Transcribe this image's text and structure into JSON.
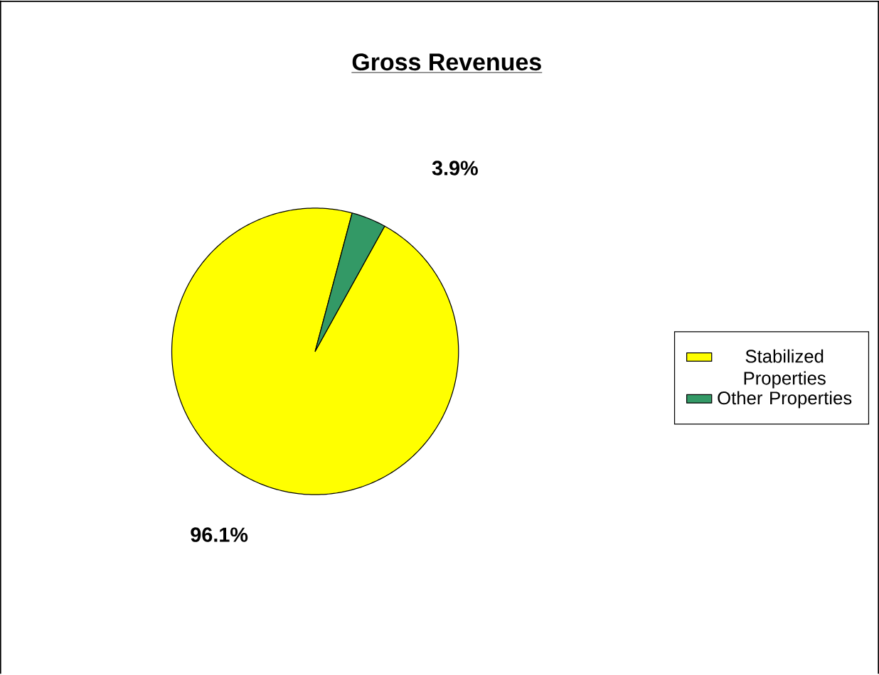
{
  "chart_data": {
    "type": "pie",
    "title": "Gross Revenues",
    "categories": [
      "Stabilized Properties",
      "Other Properties"
    ],
    "values": [
      96.1,
      3.9
    ],
    "value_labels": [
      "96.1%",
      "3.9%"
    ],
    "colors": [
      "#ffff00",
      "#339966"
    ],
    "legend": "right"
  }
}
